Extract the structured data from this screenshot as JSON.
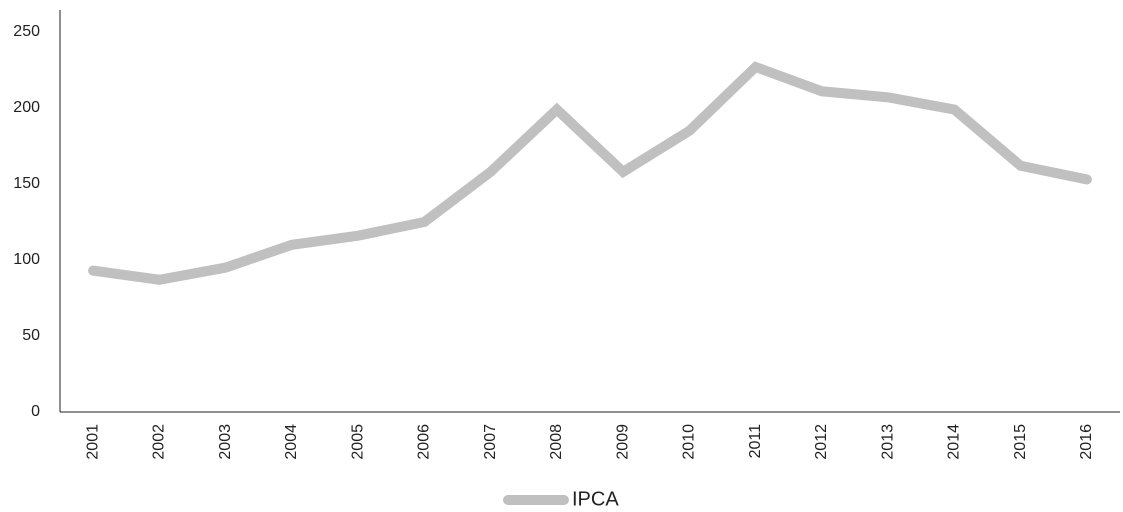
{
  "chart_data": {
    "type": "line",
    "categories": [
      "2001",
      "2002",
      "2003",
      "2004",
      "2005",
      "2006",
      "2007",
      "2008",
      "2009",
      "2010",
      "2011",
      "2012",
      "2013",
      "2014",
      "2015",
      "2016"
    ],
    "series": [
      {
        "name": "IPCA",
        "color": "#c0c0c0",
        "values": [
          93,
          87,
          95,
          110,
          116,
          125,
          158,
          199,
          158,
          185,
          227,
          211,
          207,
          199,
          162,
          153
        ]
      }
    ],
    "ylim": [
      0,
      250
    ],
    "yticks": [
      0,
      50,
      100,
      150,
      200,
      250
    ],
    "grid": false,
    "legend": "bottom"
  }
}
